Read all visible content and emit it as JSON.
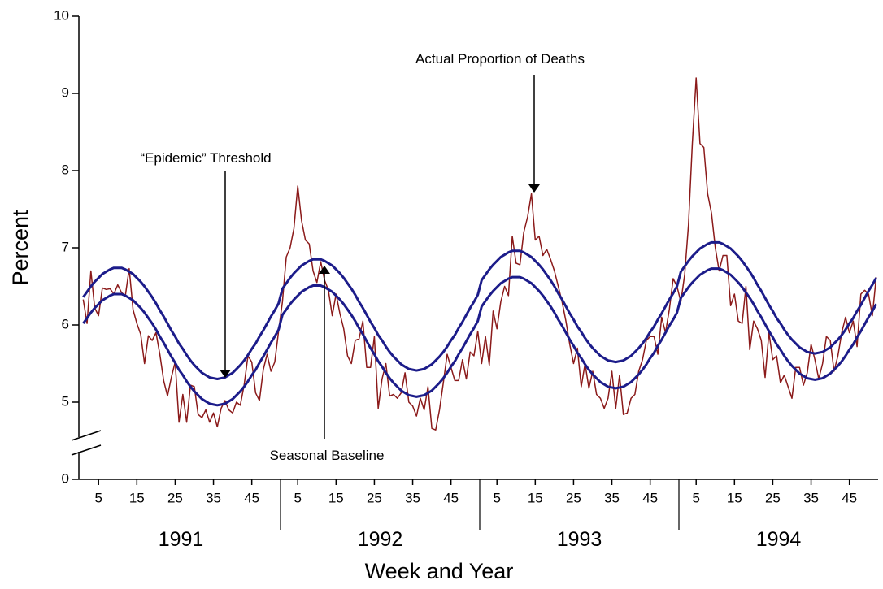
{
  "chart_data": {
    "type": "line",
    "ylabel": "Percent",
    "xlabel": "Week and Year",
    "ylim": [
      0,
      10
    ],
    "y_break": [
      0,
      4
    ],
    "yticks": [
      0,
      5,
      6,
      7,
      8,
      9,
      10
    ],
    "groups": [
      "1991",
      "1992",
      "1993",
      "1994"
    ],
    "categories": [
      null,
      null,
      null,
      null,
      "5",
      null,
      null,
      null,
      null,
      null,
      null,
      null,
      null,
      null,
      "15",
      null,
      null,
      null,
      null,
      null,
      null,
      null,
      null,
      null,
      "25",
      null,
      null,
      null,
      null,
      null,
      null,
      null,
      null,
      null,
      "35",
      null,
      null,
      null,
      null,
      null,
      null,
      null,
      null,
      null,
      "45",
      null,
      null,
      null,
      null,
      null,
      null,
      null,
      null,
      null,
      null,
      null,
      "5",
      null,
      null,
      null,
      null,
      null,
      null,
      null,
      null,
      null,
      "15",
      null,
      null,
      null,
      null,
      null,
      null,
      null,
      null,
      null,
      "25",
      null,
      null,
      null,
      null,
      null,
      null,
      null,
      null,
      null,
      "35",
      null,
      null,
      null,
      null,
      null,
      null,
      null,
      null,
      null,
      "45",
      null,
      null,
      null,
      null,
      null,
      null,
      null,
      null,
      null,
      null,
      null,
      "5",
      null,
      null,
      null,
      null,
      null,
      null,
      null,
      null,
      null,
      "15",
      null,
      null,
      null,
      null,
      null,
      null,
      null,
      null,
      null,
      "25",
      null,
      null,
      null,
      null,
      null,
      null,
      null,
      null,
      null,
      "35",
      null,
      null,
      null,
      null,
      null,
      null,
      null,
      null,
      null,
      "45",
      null,
      null,
      null,
      null,
      null,
      null,
      null,
      null,
      null,
      null,
      null,
      "5",
      null,
      null,
      null,
      null,
      null,
      null,
      null,
      null,
      null,
      "15",
      null,
      null,
      null,
      null,
      null,
      null,
      null,
      null,
      null,
      "25",
      null,
      null,
      null,
      null,
      null,
      null,
      null,
      null,
      null,
      "35",
      null,
      null,
      null,
      null,
      null,
      null,
      null,
      null,
      null,
      "45",
      null,
      null,
      null,
      null,
      null,
      null,
      null
    ],
    "series": [
      {
        "name": "Actual Proportion of Deaths",
        "color": "#8b1a1a",
        "width": 1.5,
        "values": [
          6.33,
          6.02,
          6.7,
          6.22,
          6.12,
          6.48,
          6.46,
          6.47,
          6.4,
          6.52,
          6.42,
          6.38,
          6.73,
          6.2,
          6.02,
          5.88,
          5.5,
          5.86,
          5.8,
          5.9,
          5.62,
          5.28,
          5.08,
          5.32,
          5.52,
          4.74,
          5.1,
          4.74,
          5.22,
          5.2,
          4.84,
          4.8,
          4.9,
          4.74,
          4.86,
          4.68,
          4.92,
          5.02,
          4.9,
          4.86,
          5.0,
          4.96,
          5.22,
          5.6,
          5.52,
          5.12,
          5.02,
          5.42,
          5.62,
          5.4,
          5.52,
          5.92,
          6.3,
          6.88,
          7.0,
          7.25,
          7.8,
          7.35,
          7.1,
          7.05,
          6.7,
          6.55,
          6.82,
          6.58,
          6.45,
          6.12,
          6.4,
          6.15,
          5.95,
          5.6,
          5.5,
          5.8,
          5.82,
          6.05,
          5.45,
          5.45,
          5.85,
          4.92,
          5.3,
          5.5,
          5.08,
          5.1,
          5.05,
          5.12,
          5.38,
          5.0,
          4.95,
          4.82,
          5.05,
          4.9,
          5.2,
          4.66,
          4.64,
          4.9,
          5.25,
          5.62,
          5.45,
          5.28,
          5.28,
          5.55,
          5.3,
          5.65,
          5.6,
          5.92,
          5.5,
          5.85,
          5.48,
          6.18,
          5.95,
          6.3,
          6.5,
          6.38,
          7.15,
          6.8,
          6.78,
          7.2,
          7.4,
          7.7,
          7.1,
          7.15,
          6.9,
          6.98,
          6.85,
          6.7,
          6.5,
          6.3,
          6.05,
          5.75,
          5.5,
          5.7,
          5.2,
          5.5,
          5.18,
          5.4,
          5.1,
          5.05,
          4.92,
          5.05,
          5.4,
          4.92,
          5.35,
          4.84,
          4.86,
          5.05,
          5.1,
          5.4,
          5.55,
          5.8,
          5.85,
          5.85,
          5.62,
          6.1,
          5.9,
          6.2,
          6.6,
          6.5,
          6.3,
          6.65,
          7.3,
          8.35,
          9.2,
          8.35,
          8.3,
          7.7,
          7.45,
          7.0,
          6.7,
          6.9,
          6.9,
          6.25,
          6.4,
          6.05,
          6.02,
          6.5,
          5.68,
          6.05,
          5.95,
          5.8,
          5.32,
          5.9,
          5.55,
          5.6,
          5.25,
          5.35,
          5.2,
          5.05,
          5.45,
          5.45,
          5.22,
          5.38,
          5.75,
          5.55,
          5.3,
          5.5,
          5.85,
          5.8,
          5.4,
          5.6,
          5.9,
          6.1,
          5.9,
          6.05,
          5.72,
          6.4,
          6.45,
          6.4,
          6.12,
          6.62
        ]
      },
      {
        "name": "“Epidemic” Threshold",
        "color": "#1c1c8a",
        "width": 3,
        "values": [
          6.36,
          6.43,
          6.5,
          6.56,
          6.61,
          6.66,
          6.69,
          6.72,
          6.74,
          6.74,
          6.74,
          6.72,
          6.69,
          6.66,
          6.61,
          6.56,
          6.5,
          6.43,
          6.36,
          6.28,
          6.19,
          6.11,
          6.02,
          5.93,
          5.85,
          5.76,
          5.69,
          5.61,
          5.54,
          5.48,
          5.43,
          5.38,
          5.35,
          5.32,
          5.31,
          5.3,
          5.31,
          5.32,
          5.35,
          5.38,
          5.43,
          5.48,
          5.54,
          5.61,
          5.69,
          5.76,
          5.85,
          5.93,
          6.02,
          6.11,
          6.19,
          6.28,
          6.47,
          6.54,
          6.61,
          6.67,
          6.72,
          6.77,
          6.8,
          6.83,
          6.85,
          6.85,
          6.85,
          6.83,
          6.8,
          6.77,
          6.72,
          6.67,
          6.61,
          6.54,
          6.47,
          6.39,
          6.3,
          6.22,
          6.13,
          6.04,
          5.96,
          5.87,
          5.8,
          5.72,
          5.65,
          5.59,
          5.54,
          5.49,
          5.46,
          5.43,
          5.42,
          5.41,
          5.42,
          5.43,
          5.46,
          5.49,
          5.54,
          5.59,
          5.65,
          5.72,
          5.8,
          5.87,
          5.96,
          6.04,
          6.13,
          6.22,
          6.3,
          6.39,
          6.58,
          6.65,
          6.72,
          6.78,
          6.83,
          6.88,
          6.91,
          6.94,
          6.96,
          6.96,
          6.96,
          6.94,
          6.91,
          6.88,
          6.83,
          6.78,
          6.72,
          6.65,
          6.58,
          6.5,
          6.41,
          6.33,
          6.24,
          6.15,
          6.07,
          5.98,
          5.91,
          5.83,
          5.76,
          5.7,
          5.65,
          5.6,
          5.57,
          5.54,
          5.53,
          5.52,
          5.53,
          5.54,
          5.57,
          5.6,
          5.65,
          5.7,
          5.76,
          5.83,
          5.91,
          5.98,
          6.07,
          6.15,
          6.24,
          6.33,
          6.41,
          6.5,
          6.69,
          6.76,
          6.83,
          6.89,
          6.94,
          6.99,
          7.02,
          7.05,
          7.07,
          7.07,
          7.07,
          7.05,
          7.02,
          6.99,
          6.94,
          6.89,
          6.83,
          6.76,
          6.69,
          6.61,
          6.52,
          6.44,
          6.35,
          6.26,
          6.18,
          6.09,
          6.02,
          5.94,
          5.87,
          5.81,
          5.76,
          5.71,
          5.68,
          5.65,
          5.64,
          5.63,
          5.64,
          5.65,
          5.68,
          5.71,
          5.76,
          5.81,
          5.87,
          5.94,
          6.02,
          6.09,
          6.18,
          6.26,
          6.35,
          6.44,
          6.52,
          6.61
        ]
      },
      {
        "name": "Seasonal Baseline",
        "color": "#1c1c8a",
        "width": 3,
        "values": [
          6.02,
          6.09,
          6.16,
          6.22,
          6.27,
          6.32,
          6.35,
          6.38,
          6.4,
          6.4,
          6.4,
          6.38,
          6.35,
          6.32,
          6.27,
          6.22,
          6.16,
          6.09,
          6.02,
          5.94,
          5.85,
          5.77,
          5.68,
          5.59,
          5.51,
          5.42,
          5.35,
          5.27,
          5.2,
          5.14,
          5.09,
          5.04,
          5.01,
          4.98,
          4.97,
          4.96,
          4.97,
          4.98,
          5.01,
          5.04,
          5.09,
          5.14,
          5.2,
          5.27,
          5.35,
          5.42,
          5.51,
          5.59,
          5.68,
          5.77,
          5.85,
          5.94,
          6.13,
          6.2,
          6.27,
          6.33,
          6.38,
          6.43,
          6.46,
          6.49,
          6.51,
          6.51,
          6.51,
          6.49,
          6.46,
          6.43,
          6.38,
          6.33,
          6.27,
          6.2,
          6.13,
          6.05,
          5.96,
          5.88,
          5.79,
          5.7,
          5.62,
          5.53,
          5.46,
          5.38,
          5.31,
          5.25,
          5.2,
          5.15,
          5.12,
          5.09,
          5.08,
          5.07,
          5.08,
          5.09,
          5.12,
          5.15,
          5.2,
          5.25,
          5.31,
          5.38,
          5.46,
          5.53,
          5.62,
          5.7,
          5.79,
          5.88,
          5.96,
          6.05,
          6.24,
          6.31,
          6.38,
          6.44,
          6.49,
          6.54,
          6.57,
          6.6,
          6.62,
          6.62,
          6.62,
          6.6,
          6.57,
          6.54,
          6.49,
          6.44,
          6.38,
          6.31,
          6.24,
          6.16,
          6.07,
          5.99,
          5.9,
          5.81,
          5.73,
          5.64,
          5.57,
          5.49,
          5.42,
          5.36,
          5.31,
          5.26,
          5.23,
          5.2,
          5.19,
          5.18,
          5.19,
          5.2,
          5.23,
          5.26,
          5.31,
          5.36,
          5.42,
          5.49,
          5.57,
          5.64,
          5.73,
          5.81,
          5.9,
          5.99,
          6.07,
          6.16,
          6.35,
          6.42,
          6.49,
          6.55,
          6.6,
          6.65,
          6.68,
          6.71,
          6.73,
          6.73,
          6.73,
          6.71,
          6.68,
          6.65,
          6.6,
          6.55,
          6.49,
          6.42,
          6.35,
          6.27,
          6.18,
          6.1,
          6.01,
          5.92,
          5.84,
          5.75,
          5.68,
          5.6,
          5.53,
          5.47,
          5.42,
          5.37,
          5.34,
          5.31,
          5.3,
          5.29,
          5.3,
          5.31,
          5.34,
          5.37,
          5.42,
          5.47,
          5.53,
          5.6,
          5.68,
          5.75,
          5.84,
          5.92,
          6.01,
          6.1,
          6.18,
          6.27
        ]
      }
    ]
  }
}
